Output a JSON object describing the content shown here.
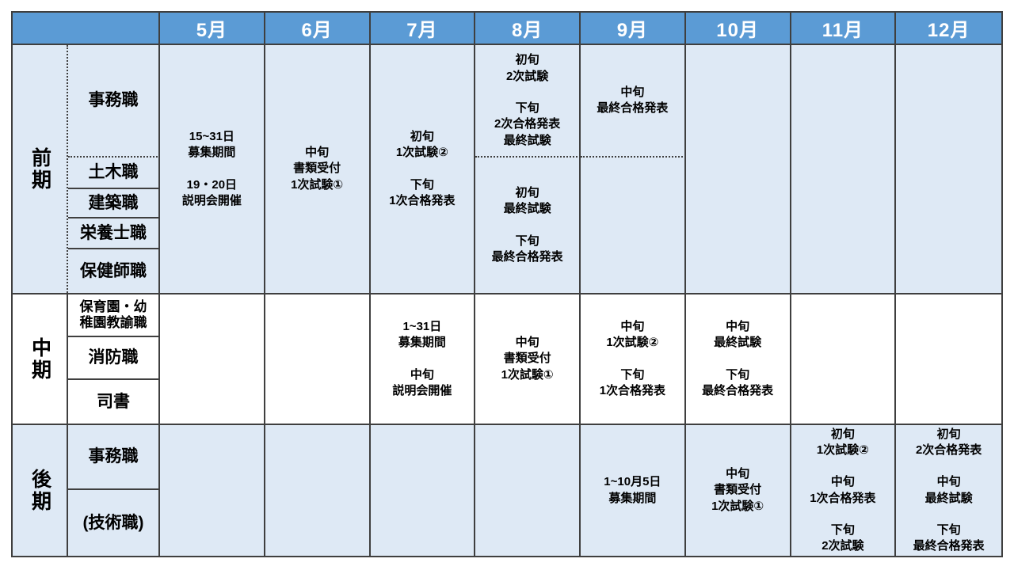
{
  "colors": {
    "header_bg": "#5b9bd5",
    "header_text": "#ffffff",
    "section_light_blue": "#dee9f5",
    "section_white": "#ffffff",
    "border": "#3f3f3f",
    "text": "#000000"
  },
  "header": {
    "months": [
      "5月",
      "6月",
      "7月",
      "8月",
      "9月",
      "10月",
      "11月",
      "12月"
    ]
  },
  "sections": {
    "zenki": {
      "term": "前期",
      "jobs": {
        "jimu": "事務職",
        "doboku": "土木職",
        "kenchiku": "建築職",
        "eiyoshi": "栄養士職",
        "hokenshi": "保健師職"
      },
      "cells": {
        "may": "15~31日\n募集期間\n\n19・20日\n説明会開催",
        "jun": "中旬\n書類受付\n1次試験①",
        "jul": "初旬\n1次試験②\n\n下旬\n1次合格発表",
        "aug_jimu": "初旬\n2次試験\n\n下旬\n2次合格発表\n最終試験",
        "aug_others": "初旬\n最終試験\n\n下旬\n最終合格発表",
        "sep_jimu": "中旬\n最終合格発表"
      }
    },
    "chuki": {
      "term": "中期",
      "jobs": {
        "hoiku": "保育園・幼\n稚園教諭職",
        "shobo": "消防職",
        "shisho": "司書"
      },
      "cells": {
        "jul": "1~31日\n募集期間\n\n中旬\n説明会開催",
        "aug": "中旬\n書類受付\n1次試験①",
        "sep": "中旬\n1次試験②\n\n下旬\n1次合格発表",
        "oct": "中旬\n最終試験\n\n下旬\n最終合格発表"
      }
    },
    "koki": {
      "term": "後期",
      "jobs": {
        "jimu": "事務職",
        "gijutsu": "(技術職)"
      },
      "cells": {
        "sep": "1~10月5日\n募集期間",
        "oct": "中旬\n書類受付\n1次試験①",
        "nov": "初旬\n1次試験②\n\n中旬\n1次合格発表\n\n下旬\n2次試験",
        "dec": "初旬\n2次合格発表\n\n中旬\n最終試験\n\n下旬\n最終合格発表"
      }
    }
  }
}
